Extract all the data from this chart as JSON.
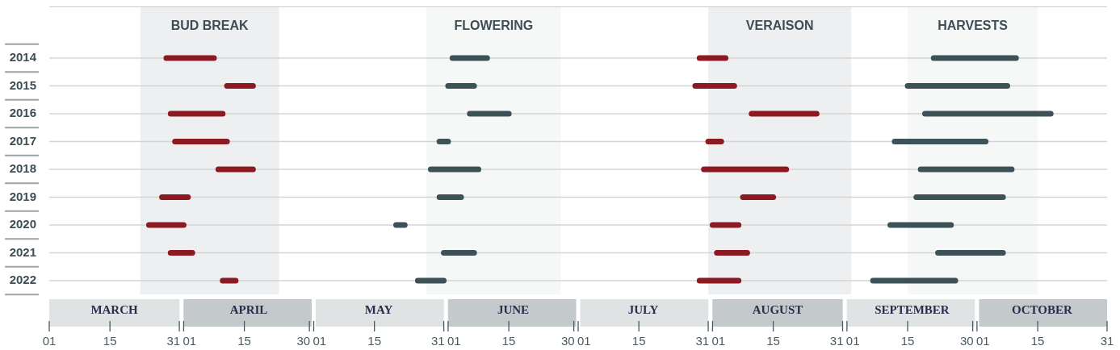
{
  "chart_data": {
    "type": "line",
    "grid": "y",
    "legend": false,
    "series": [
      {
        "color": "#8b1a22",
        "x": [
          "--03-28",
          "--04-08"
        ],
        "values": [
          2014,
          2014
        ]
      },
      {
        "color": "#8b1a22",
        "x": [
          "--04-11",
          "--04-17"
        ],
        "values": [
          2015,
          2015
        ]
      },
      {
        "color": "#8b1a22",
        "x": [
          "--03-29",
          "--04-10"
        ],
        "values": [
          2016,
          2016
        ]
      },
      {
        "color": "#8b1a22",
        "x": [
          "--03-30",
          "--04-11"
        ],
        "values": [
          2017,
          2017
        ]
      },
      {
        "color": "#8b1a22",
        "x": [
          "--04-09",
          "--04-17"
        ],
        "values": [
          2018,
          2018
        ]
      },
      {
        "color": "#8b1a22",
        "x": [
          "--03-27",
          "--04-02"
        ],
        "values": [
          2019,
          2019
        ]
      },
      {
        "color": "#8b1a22",
        "x": [
          "--03-24",
          "--04-01"
        ],
        "values": [
          2020,
          2020
        ]
      },
      {
        "color": "#8b1a22",
        "x": [
          "--03-29",
          "--04-03"
        ],
        "values": [
          2021,
          2021
        ]
      },
      {
        "color": "#8b1a22",
        "x": [
          "--04-10",
          "--04-13"
        ],
        "values": [
          2022,
          2022
        ]
      },
      {
        "color": "#3d5257",
        "x": [
          "--06-02",
          "--06-10"
        ],
        "values": [
          2014,
          2014
        ]
      },
      {
        "color": "#3d5257",
        "x": [
          "--06-01",
          "--06-07"
        ],
        "values": [
          2015,
          2015
        ]
      },
      {
        "color": "#3d5257",
        "x": [
          "--06-06",
          "--06-15"
        ],
        "values": [
          2016,
          2016
        ]
      },
      {
        "color": "#3d5257",
        "x": [
          "--05-30",
          "--06-01"
        ],
        "values": [
          2017,
          2017
        ]
      },
      {
        "color": "#3d5257",
        "x": [
          "--05-28",
          "--06-08"
        ],
        "values": [
          2018,
          2018
        ]
      },
      {
        "color": "#3d5257",
        "x": [
          "--05-30",
          "--06-04"
        ],
        "values": [
          2019,
          2019
        ]
      },
      {
        "color": "#3d5257",
        "x": [
          "--05-20",
          "--05-22"
        ],
        "values": [
          2020,
          2020
        ]
      },
      {
        "color": "#3d5257",
        "x": [
          "--05-31",
          "--06-07"
        ],
        "values": [
          2021,
          2021
        ]
      },
      {
        "color": "#3d5257",
        "x": [
          "--05-25",
          "--05-31"
        ],
        "values": [
          2022,
          2022
        ]
      },
      {
        "color": "#8b1a22",
        "x": [
          "--07-29",
          "--08-04"
        ],
        "values": [
          2014,
          2014
        ]
      },
      {
        "color": "#8b1a22",
        "x": [
          "--07-28",
          "--08-06"
        ],
        "values": [
          2015,
          2015
        ]
      },
      {
        "color": "#8b1a22",
        "x": [
          "--08-10",
          "--08-25"
        ],
        "values": [
          2016,
          2016
        ]
      },
      {
        "color": "#8b1a22",
        "x": [
          "--07-31",
          "--08-03"
        ],
        "values": [
          2017,
          2017
        ]
      },
      {
        "color": "#8b1a22",
        "x": [
          "--07-30",
          "--08-18"
        ],
        "values": [
          2018,
          2018
        ]
      },
      {
        "color": "#8b1a22",
        "x": [
          "--08-08",
          "--08-15"
        ],
        "values": [
          2019,
          2019
        ]
      },
      {
        "color": "#8b1a22",
        "x": [
          "--08-01",
          "--08-07"
        ],
        "values": [
          2020,
          2020
        ]
      },
      {
        "color": "#8b1a22",
        "x": [
          "--08-02",
          "--08-09"
        ],
        "values": [
          2021,
          2021
        ]
      },
      {
        "color": "#8b1a22",
        "x": [
          "--07-29",
          "--08-07"
        ],
        "values": [
          2022,
          2022
        ]
      },
      {
        "color": "#3d5257",
        "x": [
          "--09-21",
          "--10-10"
        ],
        "values": [
          2014,
          2014
        ]
      },
      {
        "color": "#3d5257",
        "x": [
          "--09-15",
          "--10-08"
        ],
        "values": [
          2015,
          2015
        ]
      },
      {
        "color": "#3d5257",
        "x": [
          "--09-19",
          "--10-18"
        ],
        "values": [
          2016,
          2016
        ]
      },
      {
        "color": "#3d5257",
        "x": [
          "--09-12",
          "--10-03"
        ],
        "values": [
          2017,
          2017
        ]
      },
      {
        "color": "#3d5257",
        "x": [
          "--09-18",
          "--10-09"
        ],
        "values": [
          2018,
          2018
        ]
      },
      {
        "color": "#3d5257",
        "x": [
          "--09-17",
          "--10-07"
        ],
        "values": [
          2019,
          2019
        ]
      },
      {
        "color": "#3d5257",
        "x": [
          "--09-11",
          "--09-25"
        ],
        "values": [
          2020,
          2020
        ]
      },
      {
        "color": "#3d5257",
        "x": [
          "--09-22",
          "--10-07"
        ],
        "values": [
          2021,
          2021
        ]
      },
      {
        "color": "#3d5257",
        "x": [
          "--09-07",
          "--09-26"
        ],
        "values": [
          2022,
          2022
        ]
      }
    ],
    "ylim": [
      2022,
      2014
    ],
    "yticks": [
      2014,
      2015,
      2016,
      2017,
      2018,
      2019,
      2020,
      2021,
      2022
    ],
    "bands": [
      {
        "axis": "x",
        "from": "--03-22",
        "to": "--04-23",
        "label": "BUD BREAK",
        "color": "#eeeff1"
      },
      {
        "axis": "x",
        "from": "--05-27",
        "to": "--06-27",
        "label": "FLOWERING",
        "color": "#f6f8f8"
      },
      {
        "axis": "x",
        "from": "--07-31",
        "to": "--09-02",
        "label": "VERAISON",
        "color": "#eeeff1"
      },
      {
        "axis": "x",
        "from": "--09-15",
        "to": "--10-15",
        "label": "HARVESTS",
        "color": "#f6f8f8"
      }
    ],
    "xlim": [
      "--03-01",
      "--10-31"
    ],
    "xticks": [
      {
        "value": "--03-01",
        "label": "01"
      },
      {
        "value": "--03-15",
        "label": "15"
      },
      {
        "value": "--03-31",
        "label": "31"
      },
      {
        "value": "--04-01",
        "label": "01"
      },
      {
        "value": "--04-15",
        "label": "15"
      },
      {
        "value": "--04-30",
        "label": "30"
      },
      {
        "value": "--05-01",
        "label": "01"
      },
      {
        "value": "--05-15",
        "label": "15"
      },
      {
        "value": "--05-31",
        "label": "31"
      },
      {
        "value": "--06-01",
        "label": "01"
      },
      {
        "value": "--06-15",
        "label": "15"
      },
      {
        "value": "--06-30",
        "label": "30"
      },
      {
        "value": "--07-01",
        "label": "01"
      },
      {
        "value": "--07-15",
        "label": "15"
      },
      {
        "value": "--07-31",
        "label": "31"
      },
      {
        "value": "--08-01",
        "label": "01"
      },
      {
        "value": "--08-15",
        "label": "15"
      },
      {
        "value": "--08-31",
        "label": "31"
      },
      {
        "value": "--09-01",
        "label": "01"
      },
      {
        "value": "--09-15",
        "label": "15"
      },
      {
        "value": "--09-30",
        "label": "30"
      },
      {
        "value": "--10-01",
        "label": "01"
      },
      {
        "value": "--10-15",
        "label": "15"
      },
      {
        "value": "--10-31",
        "label": "31"
      }
    ],
    "x2lim": [
      "--03-01",
      "--10-31"
    ],
    "x2ticks": [
      {
        "value": "--03-16",
        "label": "MARCH"
      },
      {
        "value": "--04-16",
        "label": "APRIL"
      },
      {
        "value": "--05-16",
        "label": "MAY"
      },
      {
        "value": "--06-16",
        "label": "JUNE"
      },
      {
        "value": "--07-16",
        "label": "JULY"
      },
      {
        "value": "--08-16",
        "label": "AUGUST"
      },
      {
        "value": "--09-16",
        "label": "SEPTEMBER"
      },
      {
        "value": "--10-16",
        "label": "OCTOBER"
      }
    ]
  }
}
